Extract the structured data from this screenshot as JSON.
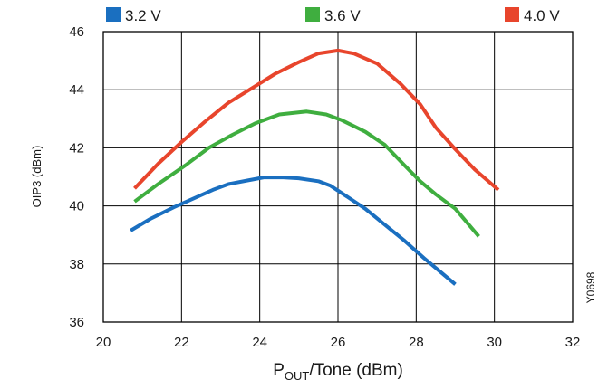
{
  "chart_data": {
    "type": "line",
    "xlabel_main": "P",
    "xlabel_sub": "OUT",
    "xlabel_rest": "/Tone (dBm)",
    "ylabel": "OIP3 (dBm)",
    "code": "Y0698",
    "xlim": [
      20,
      32
    ],
    "ylim": [
      36,
      46
    ],
    "x_ticks": [
      20,
      22,
      24,
      26,
      28,
      30,
      32
    ],
    "y_ticks": [
      36,
      38,
      40,
      42,
      44,
      46
    ],
    "grid": true,
    "legend_position": "top",
    "series": [
      {
        "name": "3.2 V",
        "color": "#1a6fc0",
        "points": [
          [
            20.7,
            39.15
          ],
          [
            21.2,
            39.55
          ],
          [
            21.8,
            39.95
          ],
          [
            22.3,
            40.25
          ],
          [
            22.8,
            40.55
          ],
          [
            23.2,
            40.75
          ],
          [
            23.7,
            40.88
          ],
          [
            24.1,
            40.98
          ],
          [
            24.6,
            40.98
          ],
          [
            25.0,
            40.95
          ],
          [
            25.5,
            40.85
          ],
          [
            25.8,
            40.7
          ],
          [
            26.2,
            40.35
          ],
          [
            26.7,
            39.9
          ],
          [
            27.2,
            39.35
          ],
          [
            27.7,
            38.8
          ],
          [
            28.2,
            38.2
          ],
          [
            28.6,
            37.75
          ],
          [
            29.0,
            37.3
          ]
        ]
      },
      {
        "name": "3.6 V",
        "color": "#3fae3f",
        "points": [
          [
            20.8,
            40.15
          ],
          [
            21.4,
            40.75
          ],
          [
            22.1,
            41.4
          ],
          [
            22.7,
            42.0
          ],
          [
            23.3,
            42.45
          ],
          [
            23.9,
            42.85
          ],
          [
            24.5,
            43.15
          ],
          [
            25.2,
            43.25
          ],
          [
            25.7,
            43.15
          ],
          [
            26.1,
            42.95
          ],
          [
            26.7,
            42.55
          ],
          [
            27.2,
            42.1
          ],
          [
            27.7,
            41.4
          ],
          [
            28.1,
            40.85
          ],
          [
            28.5,
            40.4
          ],
          [
            29.0,
            39.9
          ],
          [
            29.6,
            38.95
          ]
        ]
      },
      {
        "name": "4.0 V",
        "color": "#e8452c",
        "points": [
          [
            20.8,
            40.6
          ],
          [
            21.4,
            41.45
          ],
          [
            22.0,
            42.2
          ],
          [
            22.6,
            42.9
          ],
          [
            23.2,
            43.55
          ],
          [
            23.8,
            44.05
          ],
          [
            24.4,
            44.55
          ],
          [
            25.0,
            44.95
          ],
          [
            25.5,
            45.25
          ],
          [
            26.0,
            45.35
          ],
          [
            26.4,
            45.25
          ],
          [
            27.0,
            44.9
          ],
          [
            27.6,
            44.2
          ],
          [
            28.1,
            43.5
          ],
          [
            28.5,
            42.7
          ],
          [
            29.0,
            41.95
          ],
          [
            29.5,
            41.25
          ],
          [
            30.1,
            40.55
          ]
        ]
      }
    ]
  }
}
